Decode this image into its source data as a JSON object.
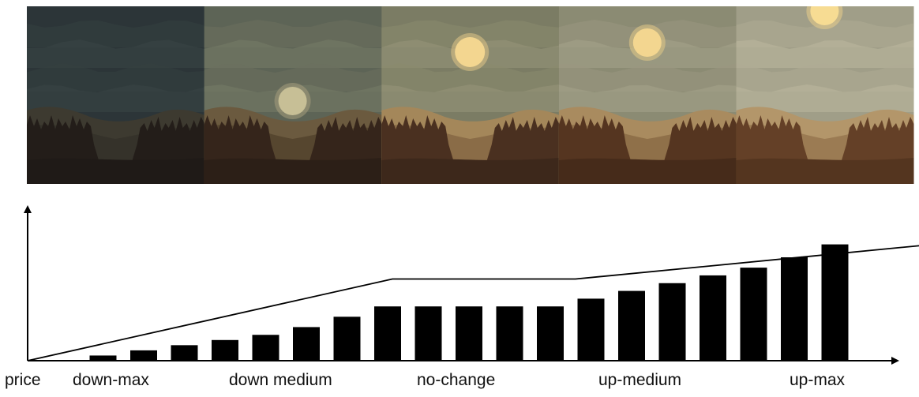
{
  "panels": [
    {
      "name": "down-max",
      "sky": "#2c3538",
      "cloud_a": "#34403f",
      "cloud_b": "#3b4645",
      "sun": "#556a6e",
      "sun_glow": "#4a5b5c",
      "hill": "#3d3a30",
      "hill2": "#35322a",
      "trees": "#231d19",
      "ground": "#1f1a17",
      "sun_size": "small"
    },
    {
      "name": "down-medium",
      "sky": "#5d6456",
      "cloud_a": "#6b705f",
      "cloud_b": "#777b68",
      "sun": "#c7bf96",
      "sun_glow": "#a09a7a",
      "hill": "#6b5a3f",
      "hill2": "#56462f",
      "trees": "#35251b",
      "ground": "#2c1f17",
      "sun_size": "medium"
    },
    {
      "name": "no-change",
      "sky": "#7b7c64",
      "cloud_a": "#8b8a6e",
      "cloud_b": "#98967a",
      "sun": "#f3d690",
      "sun_glow": "#d9c083",
      "hill": "#a4875a",
      "hill2": "#8a6c47",
      "trees": "#4a3020",
      "ground": "#3d281b",
      "sun_size": "large"
    },
    {
      "name": "up-medium",
      "sky": "#8b8b73",
      "cloud_a": "#9a9880",
      "cloud_b": "#a6a48b",
      "sun": "#f3d690",
      "sun_glow": "#dcc486",
      "hill": "#a98b5f",
      "hill2": "#8f7049",
      "trees": "#553520",
      "ground": "#462b1a",
      "sun_size": "large"
    },
    {
      "name": "up-max",
      "sky": "#a09e88",
      "cloud_a": "#afac94",
      "cloud_b": "#bbb89f",
      "sun": "#f7dc93",
      "sun_glow": "#e2ca8b",
      "hill": "#b3966a",
      "hill2": "#9b7b53",
      "trees": "#644027",
      "ground": "#54351f",
      "sun_size": "large"
    }
  ],
  "chart_data": {
    "type": "bar",
    "values": [
      1,
      2,
      3,
      4,
      5,
      6.5,
      8.5,
      10.5,
      10.5,
      10.5,
      10.5,
      10.5,
      12,
      13.5,
      15,
      16.5,
      18,
      20,
      22.5
    ],
    "trend": [
      [
        0,
        0
      ],
      [
        9,
        15.8
      ],
      [
        13.5,
        15.8
      ],
      [
        22.3,
        22.5
      ]
    ],
    "axis_color": "#000000",
    "bar_color": "#000000"
  },
  "labels": {
    "axis_label": "price",
    "down_max": "down-max",
    "down_medium": "down medium",
    "no_change": "no-change",
    "up_medium": "up-medium",
    "up_max": "up-max"
  }
}
